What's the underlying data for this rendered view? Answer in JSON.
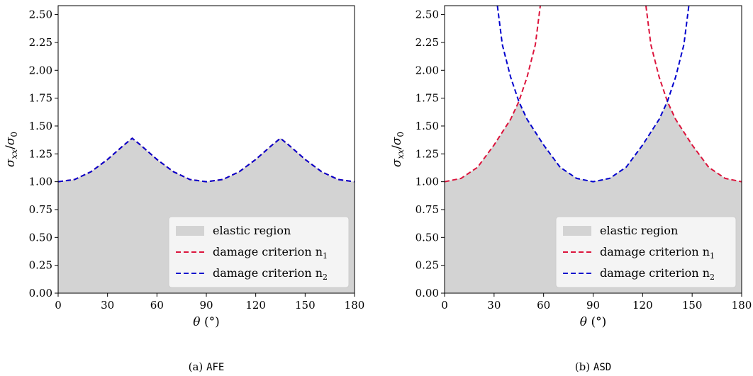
{
  "chart_data": [
    {
      "type": "area",
      "panel": "a",
      "caption_prefix": "(a)",
      "caption_code": "AFE",
      "xlabel_symbol": "θ",
      "xlabel_unit": "(°)",
      "ylabel_num": "σ",
      "ylabel_num_sub": "xx",
      "ylabel_den": "σ",
      "ylabel_den_sub": "0",
      "xlim": [
        0,
        180
      ],
      "ylim": [
        0,
        2.58
      ],
      "xticks": [
        0,
        30,
        60,
        90,
        120,
        150,
        180
      ],
      "xtick_labels": [
        "0",
        "30",
        "60",
        "90",
        "120",
        "150",
        "180"
      ],
      "yticks": [
        0,
        0.25,
        0.5,
        0.75,
        1.0,
        1.25,
        1.5,
        1.75,
        2.0,
        2.25,
        2.5
      ],
      "ytick_labels": [
        "0.00",
        "0.25",
        "0.50",
        "0.75",
        "1.00",
        "1.25",
        "1.50",
        "1.75",
        "2.00",
        "2.25",
        "2.50"
      ],
      "legend_position": "lower-right",
      "legend": [
        {
          "label": "elastic region",
          "sub": "",
          "color": "#d3d3d3",
          "kind": "patch"
        },
        {
          "label": "damage criterion n",
          "sub": "1",
          "color": "#dc143c",
          "kind": "dashed"
        },
        {
          "label": "damage criterion n",
          "sub": "2",
          "color": "#0000cd",
          "kind": "dashed"
        }
      ],
      "series": [
        {
          "name": "damage criterion n1",
          "color": "#dc143c",
          "x": [
            0,
            10,
            20,
            30,
            40,
            45,
            50,
            60,
            70,
            80,
            90,
            100,
            110,
            120,
            130,
            135,
            140,
            150,
            160,
            170,
            180
          ],
          "y": [
            1.0,
            1.02,
            1.09,
            1.2,
            1.33,
            1.39,
            1.33,
            1.2,
            1.09,
            1.02,
            1.0,
            1.02,
            1.09,
            1.2,
            1.33,
            1.39,
            1.33,
            1.2,
            1.09,
            1.02,
            1.0
          ]
        },
        {
          "name": "damage criterion n2",
          "color": "#0000cd",
          "x": [
            0,
            10,
            20,
            30,
            40,
            45,
            50,
            60,
            70,
            80,
            90,
            100,
            110,
            120,
            130,
            135,
            140,
            150,
            160,
            170,
            180
          ],
          "y": [
            1.0,
            1.02,
            1.09,
            1.2,
            1.33,
            1.39,
            1.33,
            1.2,
            1.09,
            1.02,
            1.0,
            1.02,
            1.09,
            1.2,
            1.33,
            1.39,
            1.33,
            1.2,
            1.09,
            1.02,
            1.0
          ]
        }
      ],
      "elastic_region_x": [
        0,
        10,
        20,
        30,
        40,
        45,
        50,
        60,
        70,
        80,
        90,
        100,
        110,
        120,
        130,
        135,
        140,
        150,
        160,
        170,
        180
      ],
      "elastic_region_y": [
        1.0,
        1.02,
        1.09,
        1.2,
        1.33,
        1.39,
        1.33,
        1.2,
        1.09,
        1.02,
        1.0,
        1.02,
        1.09,
        1.2,
        1.33,
        1.39,
        1.33,
        1.2,
        1.09,
        1.02,
        1.0
      ]
    },
    {
      "type": "area",
      "panel": "b",
      "caption_prefix": "(b)",
      "caption_code": "ASD",
      "xlabel_symbol": "θ",
      "xlabel_unit": "(°)",
      "ylabel_num": "σ",
      "ylabel_num_sub": "xx",
      "ylabel_den": "σ",
      "ylabel_den_sub": "0",
      "xlim": [
        0,
        180
      ],
      "ylim": [
        0,
        2.58
      ],
      "xticks": [
        0,
        30,
        60,
        90,
        120,
        150,
        180
      ],
      "xtick_labels": [
        "0",
        "30",
        "60",
        "90",
        "120",
        "150",
        "180"
      ],
      "yticks": [
        0,
        0.25,
        0.5,
        0.75,
        1.0,
        1.25,
        1.5,
        1.75,
        2.0,
        2.25,
        2.5
      ],
      "ytick_labels": [
        "0.00",
        "0.25",
        "0.50",
        "0.75",
        "1.00",
        "1.25",
        "1.50",
        "1.75",
        "2.00",
        "2.25",
        "2.50"
      ],
      "legend_position": "lower-right",
      "legend": [
        {
          "label": "elastic region",
          "sub": "",
          "color": "#d3d3d3",
          "kind": "patch"
        },
        {
          "label": "damage criterion n",
          "sub": "1",
          "color": "#dc143c",
          "kind": "dashed"
        },
        {
          "label": "damage criterion n",
          "sub": "2",
          "color": "#0000cd",
          "kind": "dashed"
        }
      ],
      "series": [
        {
          "name": "damage criterion n1",
          "color": "#dc143c",
          "segments": [
            {
              "x": [
                0,
                10,
                20,
                30,
                40,
                45,
                50,
                55,
                58
              ],
              "y": [
                1.0,
                1.03,
                1.13,
                1.33,
                1.56,
                1.72,
                1.94,
                2.23,
                2.58
              ]
            },
            {
              "x": [
                122,
                125,
                130,
                135,
                140,
                150,
                160,
                170,
                180
              ],
              "y": [
                2.58,
                2.23,
                1.94,
                1.72,
                1.56,
                1.33,
                1.13,
                1.03,
                1.0
              ]
            }
          ]
        },
        {
          "name": "damage criterion n2",
          "color": "#0000cd",
          "segments": [
            {
              "x": [
                32,
                35,
                40,
                45,
                50,
                60,
                70,
                80,
                90,
                100,
                110,
                120,
                130,
                135,
                140,
                145,
                148
              ],
              "y": [
                2.58,
                2.23,
                1.94,
                1.72,
                1.56,
                1.33,
                1.13,
                1.03,
                1.0,
                1.03,
                1.13,
                1.33,
                1.56,
                1.72,
                1.94,
                2.23,
                2.58
              ]
            }
          ]
        }
      ],
      "elastic_region_x": [
        0,
        10,
        20,
        30,
        40,
        45,
        50,
        60,
        70,
        80,
        90,
        100,
        110,
        120,
        130,
        135,
        140,
        150,
        160,
        170,
        180
      ],
      "elastic_region_y": [
        1.0,
        1.03,
        1.13,
        1.33,
        1.56,
        1.72,
        1.56,
        1.33,
        1.13,
        1.03,
        1.0,
        1.03,
        1.13,
        1.33,
        1.56,
        1.72,
        1.56,
        1.33,
        1.13,
        1.03,
        1.0
      ]
    }
  ]
}
